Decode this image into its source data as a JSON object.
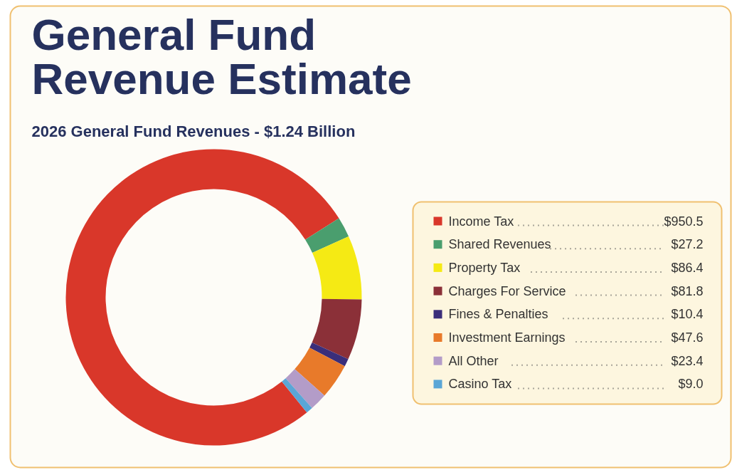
{
  "chart_data": {
    "type": "donut",
    "title": "General Fund Revenue Estimate",
    "subtitle": "2026 General Fund Revenues - $1.24 Billion",
    "categories": [
      "Income Tax",
      "Shared Revenues",
      "Property Tax",
      "Charges For Service",
      "Fines & Penalties",
      "Investment Earnings",
      "All Other",
      "Casino Tax"
    ],
    "values": [
      950.5,
      27.2,
      86.4,
      81.8,
      10.4,
      47.6,
      23.4,
      9.0
    ],
    "value_labels": [
      "$950.5",
      "$27.2",
      "$86.4",
      "$81.8",
      "$10.4",
      "$47.6",
      "$23.4",
      "$9.0"
    ],
    "colors": [
      "#d9372a",
      "#4a9e6e",
      "#f5ea14",
      "#8b3038",
      "#3a2e7a",
      "#e87a2a",
      "#b39cc8",
      "#5aa6d6"
    ],
    "legend": "right"
  }
}
